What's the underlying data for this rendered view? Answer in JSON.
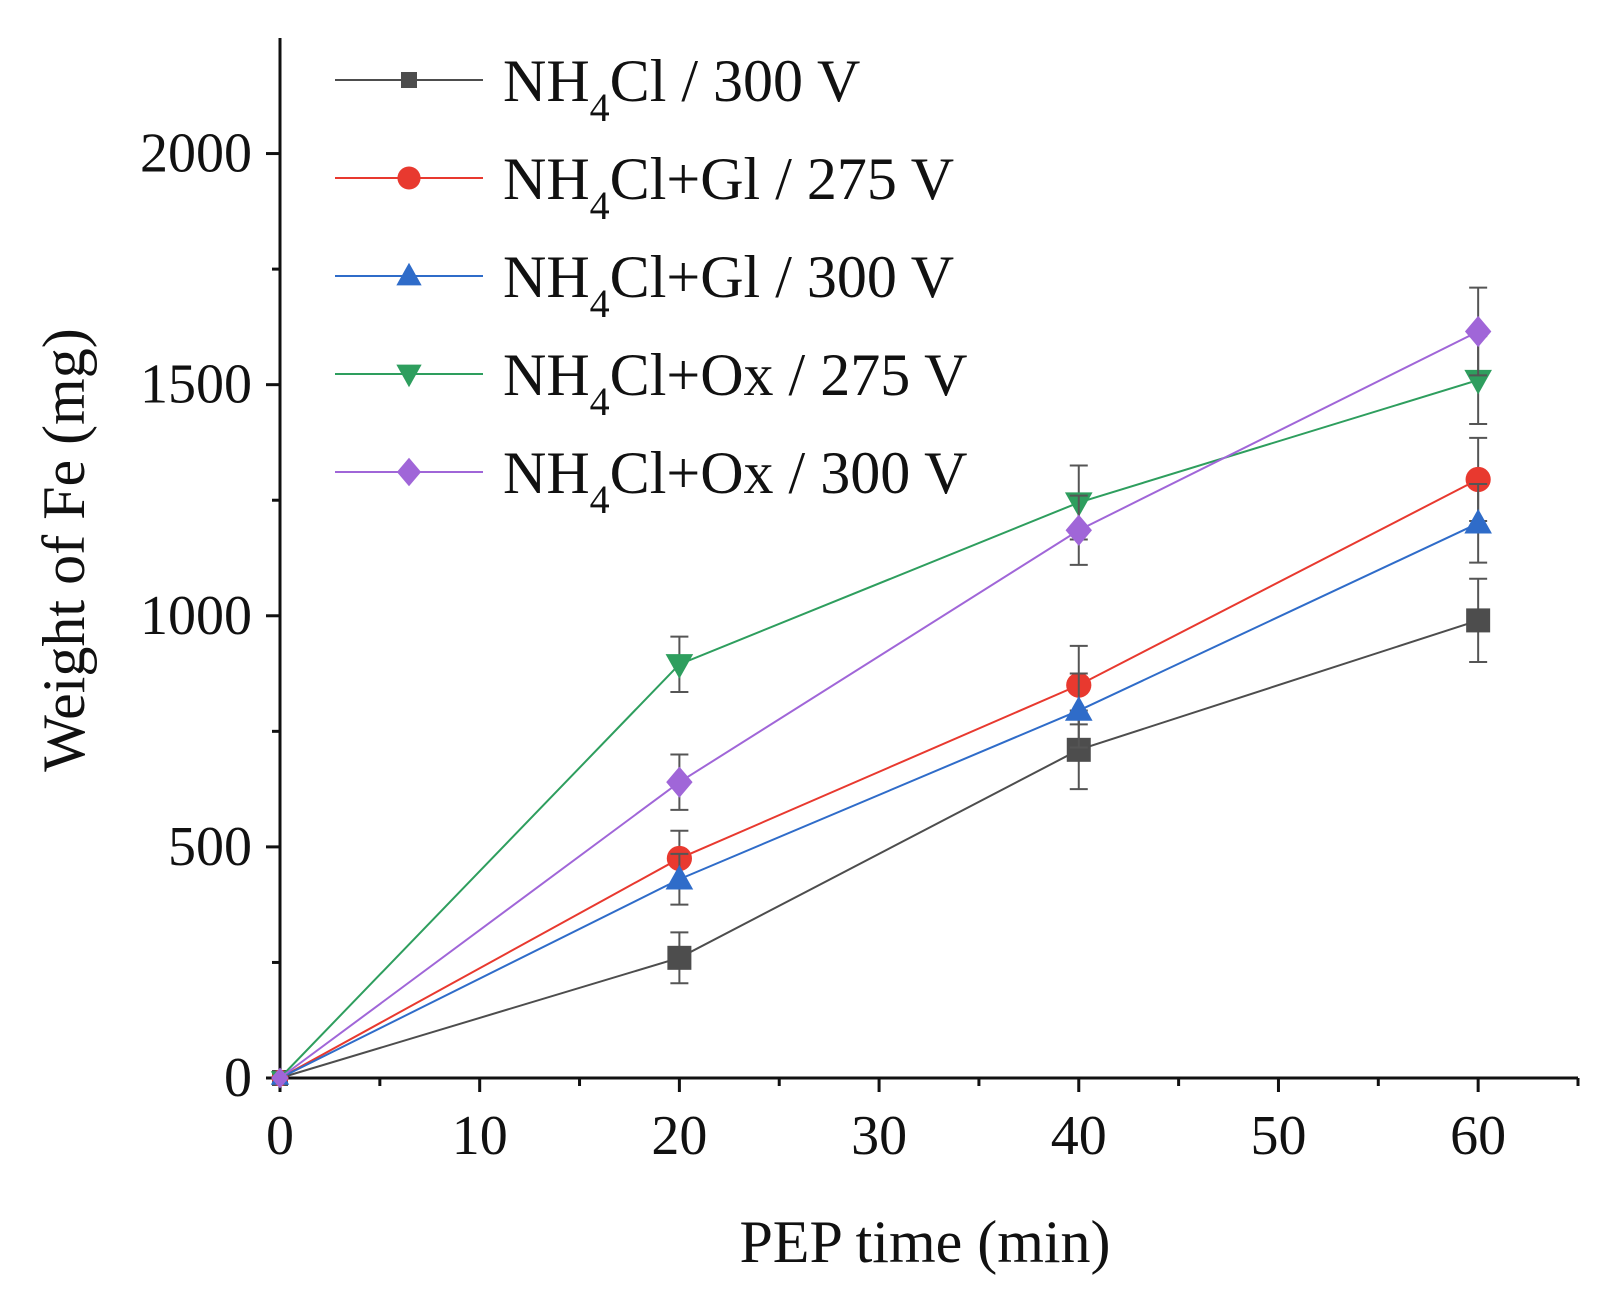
{
  "chart_data": {
    "type": "line",
    "title": "",
    "xlabel": "PEP time (min)",
    "ylabel": "Weight of Fe (mg)",
    "xlim": [
      0,
      65
    ],
    "ylim": [
      0,
      2250
    ],
    "x_ticks": [
      0,
      10,
      20,
      30,
      40,
      50,
      60
    ],
    "x_tick_labels": [
      "0",
      "10",
      "20",
      "30",
      "40",
      "50",
      "60"
    ],
    "y_ticks": [
      0,
      500,
      1000,
      1500,
      2000
    ],
    "y_tick_labels": [
      "0",
      "500",
      "1000",
      "1500",
      "2000"
    ],
    "x_minor_step": 5,
    "y_minor_step": 250,
    "grid": false,
    "legend_position": "top-left",
    "x": [
      0,
      20,
      40,
      60
    ],
    "series": [
      {
        "name": "NH4Cl / 300 V",
        "label_main": "NH",
        "label_sub": "4",
        "label_rest": "Cl / 300 V",
        "color": "#4d4d4d",
        "marker": "square",
        "values": [
          0,
          260,
          710,
          990
        ],
        "errors": [
          0,
          55,
          85,
          90
        ]
      },
      {
        "name": "NH4Cl+Gl / 275 V",
        "label_main": "NH",
        "label_sub": "4",
        "label_rest": "Cl+Gl / 275 V",
        "color": "#e8392f",
        "marker": "circle",
        "values": [
          0,
          475,
          850,
          1295
        ],
        "errors": [
          0,
          60,
          85,
          90
        ]
      },
      {
        "name": "NH4Cl+Gl / 300 V",
        "label_main": "NH",
        "label_sub": "4",
        "label_rest": "Cl+Gl / 300 V",
        "color": "#2f6cc9",
        "marker": "triangle-up",
        "values": [
          0,
          430,
          795,
          1200
        ],
        "errors": [
          0,
          55,
          80,
          85
        ]
      },
      {
        "name": "NH4Cl+Ox / 275 V",
        "label_main": "NH",
        "label_sub": "4",
        "label_rest": "Cl+Ox / 275 V",
        "color": "#2e9e5e",
        "marker": "triangle-down",
        "values": [
          0,
          895,
          1245,
          1510
        ],
        "errors": [
          0,
          60,
          80,
          95
        ]
      },
      {
        "name": "NH4Cl+Ox / 300 V",
        "label_main": "NH",
        "label_sub": "4",
        "label_rest": "Cl+Ox / 300 V",
        "color": "#a066d8",
        "marker": "diamond",
        "values": [
          0,
          640,
          1185,
          1615
        ],
        "errors": [
          0,
          60,
          75,
          95
        ]
      }
    ]
  }
}
